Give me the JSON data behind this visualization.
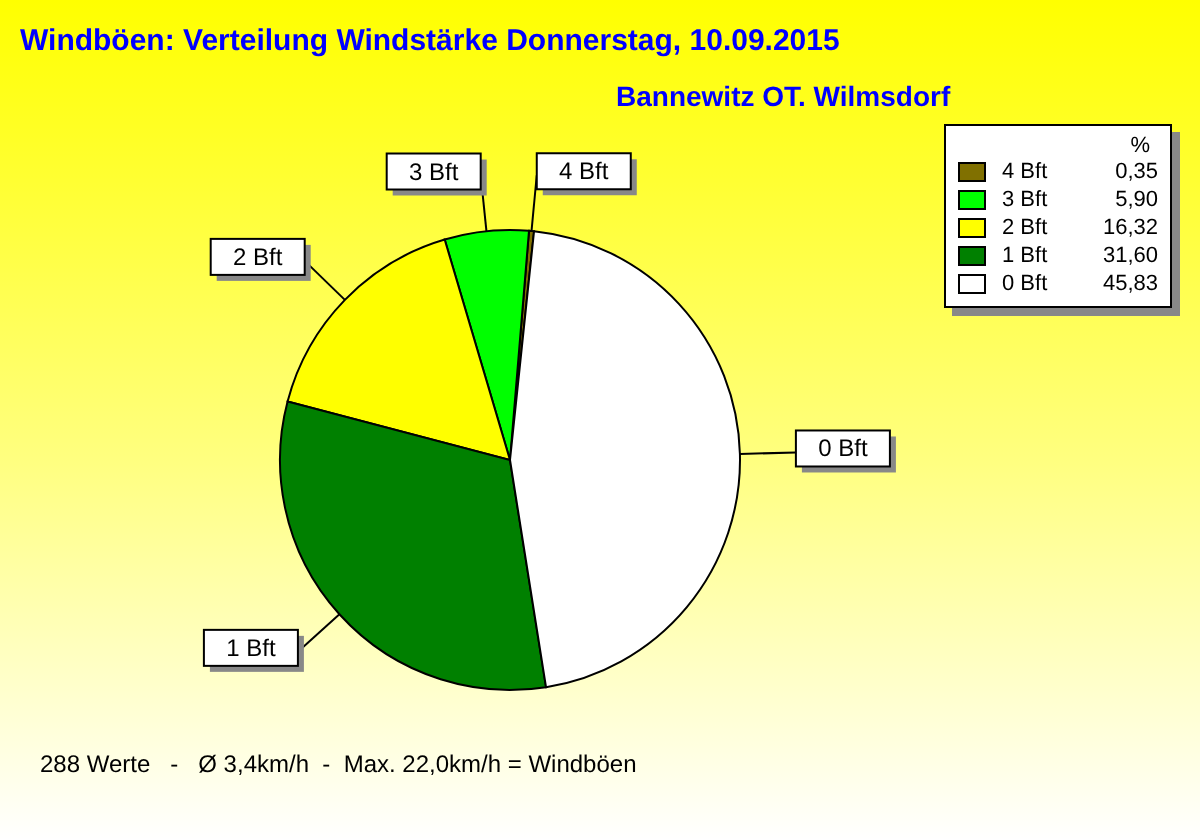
{
  "chart_data": {
    "type": "pie",
    "title": "Windböen: Verteilung Windstärke  Donnerstag, 10.09.2015",
    "subtitle": "Bannewitz OT. Wilmsdorf",
    "categories": [
      "4 Bft",
      "3 Bft",
      "2 Bft",
      "1 Bft",
      "0 Bft"
    ],
    "values": [
      0.35,
      5.9,
      16.32,
      31.6,
      45.83
    ],
    "value_labels": [
      "0,35",
      "5,90",
      "16,32",
      "31,60",
      "45,83"
    ],
    "colors": [
      "#807000",
      "#00ff00",
      "#ffff00",
      "#008000",
      "#ffffff"
    ],
    "legend": "top right",
    "legend_title": "%",
    "annotations": [
      "288 Werte   -   Ø 3,4km/h  -  Max. 22,0km/h = Windböen"
    ]
  }
}
